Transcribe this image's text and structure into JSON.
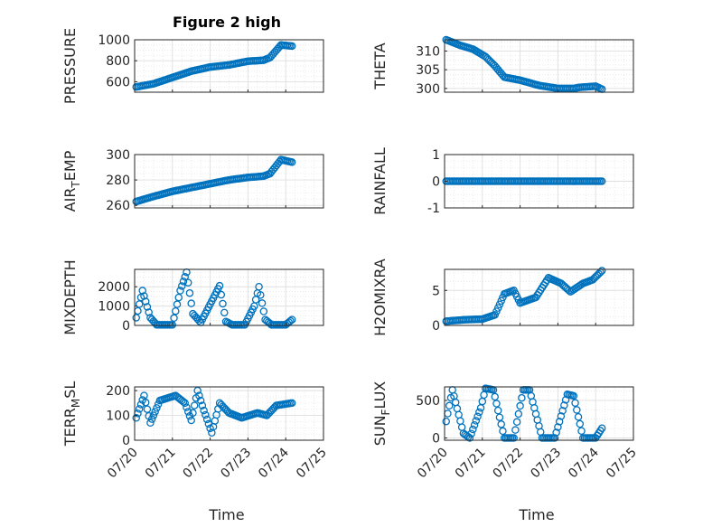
{
  "figure": {
    "title": "Figure 2 high",
    "xlabel": "Time",
    "marker_color": "#0072BD",
    "axes_color": "#262626",
    "grid_color": "#DFDFDF"
  },
  "chart_data": [
    {
      "type": "scatter",
      "ylabel": "PRESSURE",
      "ylim": [
        500,
        1000
      ],
      "yticks": [
        600,
        800,
        1000
      ],
      "xlim": [
        "07/20",
        "07/25"
      ],
      "grid": true,
      "series": [
        {
          "knots": [
            [
              "07/20 01:00",
              550
            ],
            [
              "07/20 12:00",
              580
            ],
            [
              "07/21 00:00",
              640
            ],
            [
              "07/21 12:00",
              700
            ],
            [
              "07/22 00:00",
              740
            ],
            [
              "07/22 12:00",
              760
            ],
            [
              "07/23 00:00",
              795
            ],
            [
              "07/23 10:00",
              805
            ],
            [
              "07/23 14:00",
              830
            ],
            [
              "07/23 21:00",
              950
            ],
            [
              "07/24 04:00",
              940
            ]
          ]
        }
      ]
    },
    {
      "type": "scatter",
      "ylabel": "THETA",
      "ylim": [
        299,
        313
      ],
      "yticks": [
        300,
        305,
        310
      ],
      "xlim": [
        "07/20",
        "07/25"
      ],
      "grid": true,
      "series": [
        {
          "knots": [
            [
              "07/20 01:00",
              313
            ],
            [
              "07/20 10:00",
              311.5
            ],
            [
              "07/20 18:00",
              310.5
            ],
            [
              "07/21 02:00",
              308.5
            ],
            [
              "07/21 08:00",
              306
            ],
            [
              "07/21 14:00",
              303
            ],
            [
              "07/22 00:00",
              302.2
            ],
            [
              "07/22 12:00",
              300.8
            ],
            [
              "07/23 00:00",
              300
            ],
            [
              "07/23 10:00",
              300
            ],
            [
              "07/23 14:00",
              300.3
            ],
            [
              "07/24 00:00",
              300.6
            ],
            [
              "07/24 04:00",
              299.8
            ]
          ]
        }
      ]
    },
    {
      "type": "scatter",
      "ylabel": "AIR_TEMP",
      "ylabel_main": "AIR",
      "ylabel_sub": "T",
      "ylabel_tail": "EMP",
      "ylim": [
        258,
        300
      ],
      "yticks": [
        260,
        280,
        300
      ],
      "xlim": [
        "07/20",
        "07/25"
      ],
      "grid": true,
      "series": [
        {
          "knots": [
            [
              "07/20 01:00",
              263
            ],
            [
              "07/20 12:00",
              267
            ],
            [
              "07/21 00:00",
              271
            ],
            [
              "07/21 12:00",
              274
            ],
            [
              "07/22 00:00",
              277
            ],
            [
              "07/22 12:00",
              280
            ],
            [
              "07/23 00:00",
              282
            ],
            [
              "07/23 10:00",
              283
            ],
            [
              "07/23 14:00",
              285
            ],
            [
              "07/23 21:00",
              296
            ],
            [
              "07/24 04:00",
              294
            ]
          ]
        }
      ]
    },
    {
      "type": "scatter",
      "ylabel": "RAINFALL",
      "ylim": [
        -1,
        1
      ],
      "yticks": [
        -1,
        0,
        1
      ],
      "xlim": [
        "07/20",
        "07/25"
      ],
      "grid": true,
      "series": [
        {
          "knots": [
            [
              "07/20 01:00",
              0
            ],
            [
              "07/24 04:00",
              0
            ]
          ]
        }
      ]
    },
    {
      "type": "scatter",
      "ylabel": "MIXDEPTH",
      "ylim": [
        0,
        2900
      ],
      "yticks": [
        0,
        1000,
        2000
      ],
      "xlim": [
        "07/20",
        "07/25"
      ],
      "grid": true,
      "series": [
        {
          "knots": [
            [
              "07/20 01:00",
              400
            ],
            [
              "07/20 05:00",
              1800
            ],
            [
              "07/20 10:00",
              400
            ],
            [
              "07/20 14:00",
              30
            ],
            [
              "07/21 00:00",
              30
            ],
            [
              "07/21 05:00",
              1800
            ],
            [
              "07/21 09:00",
              2750
            ],
            [
              "07/21 13:00",
              600
            ],
            [
              "07/21 18:00",
              150
            ],
            [
              "07/22 00:00",
              1100
            ],
            [
              "07/22 06:00",
              2050
            ],
            [
              "07/22 10:00",
              200
            ],
            [
              "07/22 14:00",
              30
            ],
            [
              "07/22 22:00",
              30
            ],
            [
              "07/23 04:00",
              1000
            ],
            [
              "07/23 07:00",
              2000
            ],
            [
              "07/23 11:00",
              300
            ],
            [
              "07/23 15:00",
              30
            ],
            [
              "07/24 00:00",
              30
            ],
            [
              "07/24 04:00",
              300
            ]
          ]
        }
      ]
    },
    {
      "type": "scatter",
      "ylabel": "H2OMIXRA",
      "ylim": [
        0,
        8
      ],
      "yticks": [
        0,
        5
      ],
      "xlim": [
        "07/20",
        "07/25"
      ],
      "grid": true,
      "series": [
        {
          "knots": [
            [
              "07/20 01:00",
              0.6
            ],
            [
              "07/20 12:00",
              0.8
            ],
            [
              "07/21 00:00",
              0.9
            ],
            [
              "07/21 08:00",
              1.5
            ],
            [
              "07/21 14:00",
              4.5
            ],
            [
              "07/21 20:00",
              5.0
            ],
            [
              "07/22 00:00",
              3.2
            ],
            [
              "07/22 10:00",
              4.0
            ],
            [
              "07/22 18:00",
              6.8
            ],
            [
              "07/23 02:00",
              6.0
            ],
            [
              "07/23 08:00",
              4.8
            ],
            [
              "07/23 16:00",
              6.0
            ],
            [
              "07/23 22:00",
              6.5
            ],
            [
              "07/24 04:00",
              7.8
            ]
          ]
        }
      ]
    },
    {
      "type": "scatter",
      "ylabel": "TERR_MSL",
      "ylabel_main": "TERR",
      "ylabel_sub": "M",
      "ylabel_tail": "SL",
      "ylim": [
        0,
        215
      ],
      "yticks": [
        0,
        100,
        200
      ],
      "xlim": [
        "07/20",
        "07/25"
      ],
      "grid": true,
      "series": [
        {
          "knots": [
            [
              "07/20 01:00",
              90
            ],
            [
              "07/20 06:00",
              180
            ],
            [
              "07/20 10:00",
              70
            ],
            [
              "07/20 16:00",
              160
            ],
            [
              "07/21 02:00",
              180
            ],
            [
              "07/21 08:00",
              150
            ],
            [
              "07/21 12:00",
              80
            ],
            [
              "07/21 16:00",
              200
            ],
            [
              "07/21 20:00",
              120
            ],
            [
              "07/22 01:00",
              30
            ],
            [
              "07/22 06:00",
              150
            ],
            [
              "07/22 12:00",
              110
            ],
            [
              "07/22 20:00",
              90
            ],
            [
              "07/23 06:00",
              110
            ],
            [
              "07/23 12:00",
              100
            ],
            [
              "07/23 18:00",
              140
            ],
            [
              "07/24 04:00",
              150
            ]
          ]
        }
      ]
    },
    {
      "type": "scatter",
      "ylabel": "SUN_FLUX",
      "ylabel_main": "SUN",
      "ylabel_sub": "F",
      "ylabel_tail": "LUX",
      "ylim": [
        -30,
        680
      ],
      "yticks": [
        0,
        500
      ],
      "xlim": [
        "07/20",
        "07/25"
      ],
      "grid": true,
      "series": [
        {
          "knots": [
            [
              "07/20 01:00",
              220
            ],
            [
              "07/20 05:00",
              640
            ],
            [
              "07/20 12:00",
              60
            ],
            [
              "07/20 16:00",
              0
            ],
            [
              "07/20 23:00",
              400
            ],
            [
              "07/21 02:00",
              660
            ],
            [
              "07/21 07:00",
              640
            ],
            [
              "07/21 14:00",
              0
            ],
            [
              "07/21 20:00",
              0
            ],
            [
              "07/22 02:00",
              640
            ],
            [
              "07/22 06:00",
              640
            ],
            [
              "07/22 14:00",
              0
            ],
            [
              "07/22 22:00",
              0
            ],
            [
              "07/23 06:00",
              580
            ],
            [
              "07/23 10:00",
              560
            ],
            [
              "07/23 16:00",
              0
            ],
            [
              "07/24 00:00",
              0
            ],
            [
              "07/24 04:00",
              130
            ]
          ]
        }
      ]
    }
  ],
  "xticks": [
    "07/20",
    "07/21",
    "07/22",
    "07/23",
    "07/24",
    "07/25"
  ]
}
